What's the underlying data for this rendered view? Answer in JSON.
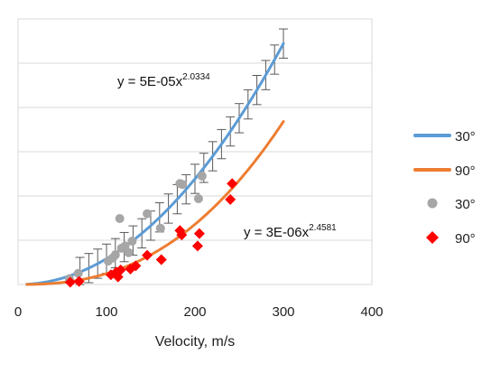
{
  "chart_data": {
    "type": "scatter",
    "xlabel": "Velocity, m/s",
    "ylabel": "",
    "xlim": [
      0,
      400
    ],
    "ylim": [
      0,
      6
    ],
    "x_ticks": [
      "0",
      "100",
      "200",
      "300",
      "400"
    ],
    "grid": "horizontal",
    "legend_position": "right",
    "series": [
      {
        "name": "30°",
        "kind": "fit-line",
        "color": "#5b9bd5",
        "equation": {
          "text": "y = 5E-05x",
          "exponent": "2.0334"
        },
        "coef": 5e-05,
        "power": 2.0334,
        "x_range": [
          10,
          300
        ],
        "error_bar_x": [
          70,
          80,
          90,
          100,
          110,
          120,
          130,
          140,
          150,
          160,
          170,
          180,
          190,
          200,
          210,
          220,
          230,
          240,
          250,
          260,
          270,
          280,
          290,
          300
        ],
        "error_bar_size": 0.33
      },
      {
        "name": "90°",
        "kind": "fit-line",
        "color": "#ed7d31",
        "equation": {
          "text": "y = 3E-06x",
          "exponent": "2.4581"
        },
        "coef": 3e-06,
        "power": 2.4581,
        "x_range": [
          10,
          300
        ]
      },
      {
        "name": "30°",
        "kind": "points",
        "color": "#a6a6a6",
        "marker": "circle",
        "x": [
          58,
          68,
          102,
          107,
          110,
          115,
          117,
          121,
          125,
          129,
          146,
          161,
          183,
          186,
          204,
          208
        ],
        "y": [
          0.13,
          0.25,
          0.53,
          0.6,
          0.67,
          1.49,
          0.82,
          0.87,
          0.72,
          0.98,
          1.6,
          1.27,
          2.28,
          2.26,
          1.94,
          2.45
        ]
      },
      {
        "name": "90°",
        "kind": "points",
        "color": "#ff0000",
        "marker": "diamond",
        "x": [
          59,
          69,
          105,
          111,
          113,
          116,
          127,
          133,
          146,
          162,
          183,
          185,
          203,
          205,
          240,
          242
        ],
        "y": [
          0.05,
          0.07,
          0.22,
          0.28,
          0.17,
          0.33,
          0.35,
          0.42,
          0.66,
          0.56,
          1.22,
          1.12,
          0.87,
          1.15,
          1.92,
          2.28
        ]
      }
    ]
  }
}
